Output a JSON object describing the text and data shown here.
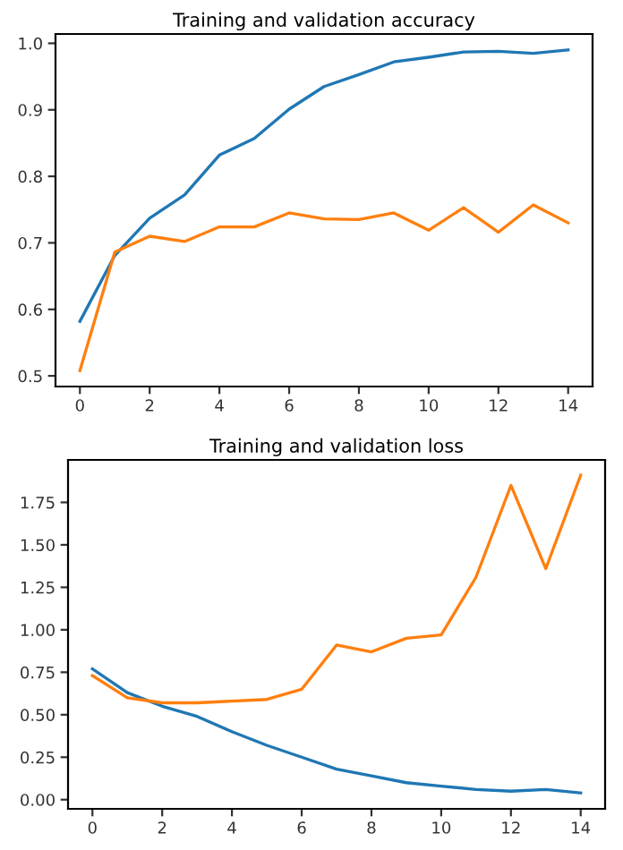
{
  "chart_data": [
    {
      "type": "line",
      "title": "Training and validation accuracy",
      "x": [
        0,
        1,
        2,
        3,
        4,
        5,
        6,
        7,
        8,
        9,
        10,
        11,
        12,
        13,
        14
      ],
      "series": [
        {
          "color": "#1f77b4",
          "values": [
            0.582,
            0.681,
            0.737,
            0.772,
            0.832,
            0.857,
            0.901,
            0.935,
            0.953,
            0.972,
            0.979,
            0.987,
            0.988,
            0.985,
            0.99
          ]
        },
        {
          "color": "#ff7f0e",
          "values": [
            0.508,
            0.686,
            0.71,
            0.702,
            0.724,
            0.724,
            0.745,
            0.736,
            0.735,
            0.745,
            0.719,
            0.753,
            0.716,
            0.757,
            0.73
          ]
        }
      ],
      "xlim": [
        -0.7,
        14.7
      ],
      "xticks": [
        0,
        2,
        4,
        6,
        8,
        10,
        12,
        14
      ],
      "ylim": [
        0.484,
        1.014
      ],
      "yticks": [
        0.5,
        0.6,
        0.7,
        0.8,
        0.9,
        {
          "value": 1.0,
          "label": "1.0"
        }
      ],
      "grid": false,
      "legend": false
    },
    {
      "type": "line",
      "title": "Training and validation loss",
      "x": [
        0,
        1,
        2,
        3,
        4,
        5,
        6,
        7,
        8,
        9,
        10,
        11,
        12,
        13,
        14
      ],
      "series": [
        {
          "color": "#1f77b4",
          "values": [
            0.77,
            0.63,
            0.55,
            0.49,
            0.4,
            0.32,
            0.25,
            0.18,
            0.14,
            0.1,
            0.08,
            0.06,
            0.05,
            0.06,
            0.04
          ]
        },
        {
          "color": "#ff7f0e",
          "values": [
            0.73,
            0.6,
            0.57,
            0.57,
            0.58,
            0.59,
            0.65,
            0.91,
            0.87,
            0.95,
            0.97,
            1.31,
            1.85,
            1.36,
            1.91
          ]
        }
      ],
      "xlim": [
        -0.7,
        14.7
      ],
      "xticks": [
        0,
        2,
        4,
        6,
        8,
        10,
        12,
        14
      ],
      "ylim": [
        -0.054,
        2.0
      ],
      "yticks": [
        {
          "value": 0.0,
          "label": "0.00"
        },
        {
          "value": 0.25,
          "label": "0.25"
        },
        {
          "value": 0.5,
          "label": "0.50"
        },
        {
          "value": 0.75,
          "label": "0.75"
        },
        {
          "value": 1.0,
          "label": "1.00"
        },
        {
          "value": 1.25,
          "label": "1.25"
        },
        {
          "value": 1.5,
          "label": "1.50"
        },
        {
          "value": 1.75,
          "label": "1.75"
        }
      ],
      "grid": false,
      "legend": false
    }
  ]
}
